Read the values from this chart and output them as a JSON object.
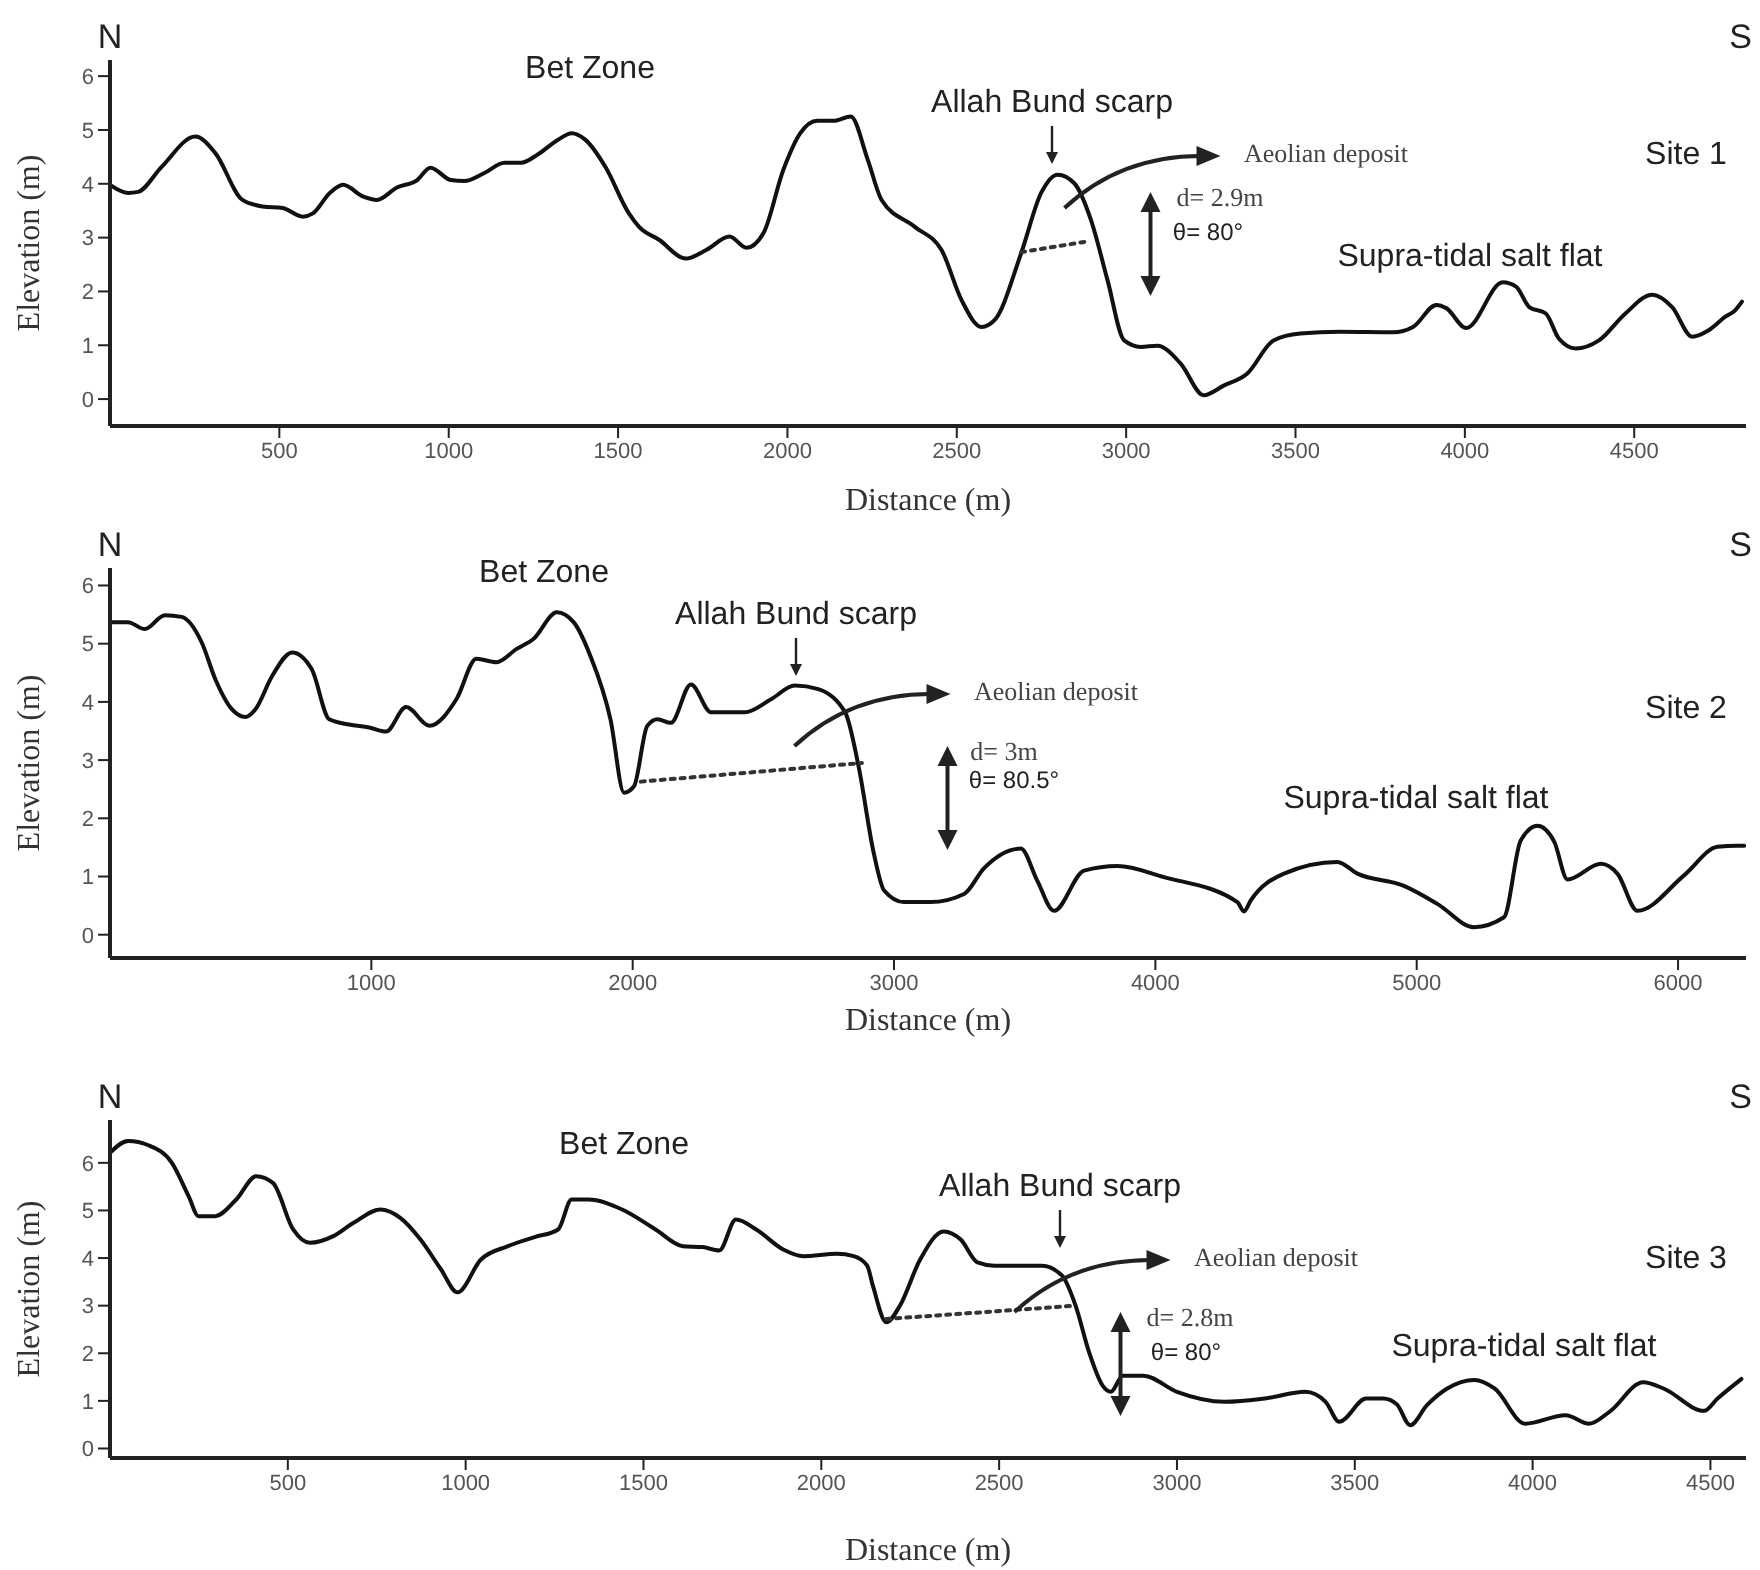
{
  "chart_data": [
    {
      "type": "line",
      "title": "Site 1",
      "xlabel": "Distance (m)",
      "ylabel": "Elevation (m)",
      "xlim": [
        0,
        4830
      ],
      "ylim": [
        -0.5,
        6.3
      ],
      "xticks": [
        500,
        1000,
        1500,
        2000,
        2500,
        3000,
        3500,
        4000,
        4500
      ],
      "yticks": [
        0,
        1,
        2,
        3,
        4,
        5,
        6
      ],
      "marker": "none",
      "series": [
        {
          "color": "#111111",
          "x": [
            0,
            54,
            83,
            153,
            252,
            311,
            391,
            450,
            510,
            569,
            599,
            649,
            688,
            748,
            788,
            847,
            907,
            946,
            1006,
            1046,
            1105,
            1165,
            1214,
            1264,
            1323,
            1363,
            1403,
            1462,
            1532,
            1562,
            1621,
            1700,
            1760,
            1829,
            1879,
            1929,
            1988,
            2038,
            2088,
            2137,
            2187,
            2237,
            2278,
            2376,
            2455,
            2514,
            2573,
            2612,
            2690,
            2749,
            2798,
            2847,
            2896,
            2945,
            2994,
            3043,
            3092,
            3161,
            3229,
            3288,
            3357,
            3435,
            3514,
            3631,
            3788,
            3847,
            3916,
            3945,
            4004,
            4112,
            4151,
            4190,
            4239,
            4278,
            4327,
            4396,
            4474,
            4553,
            4612,
            4671,
            4720,
            4769,
            4798,
            4818
          ],
          "values": [
            3.98,
            3.83,
            3.85,
            4.32,
            4.88,
            4.57,
            3.7,
            3.58,
            3.55,
            3.39,
            3.45,
            3.83,
            3.98,
            3.76,
            3.7,
            3.93,
            4.07,
            4.3,
            4.07,
            4.05,
            4.2,
            4.39,
            4.39,
            4.55,
            4.82,
            4.94,
            4.82,
            4.32,
            3.45,
            3.2,
            2.96,
            2.61,
            2.77,
            3.02,
            2.81,
            3.08,
            4.26,
            4.94,
            5.17,
            5.17,
            5.25,
            4.45,
            3.7,
            3.2,
            2.77,
            1.84,
            1.34,
            1.47,
            2.71,
            3.83,
            4.17,
            4.01,
            3.33,
            2.21,
            1.09,
            0.97,
            0.99,
            0.66,
            0.07,
            0.25,
            0.47,
            1.09,
            1.22,
            1.25,
            1.24,
            1.34,
            1.75,
            1.69,
            1.32,
            2.17,
            2.09,
            1.71,
            1.59,
            1.12,
            0.94,
            1.09,
            1.59,
            1.94,
            1.71,
            1.16,
            1.28,
            1.53,
            1.65,
            1.81
          ]
        },
        {
          "color": "#333333",
          "line_style": "dotted",
          "x": [
            2690,
            2886
          ],
          "values": [
            2.73,
            2.93
          ]
        }
      ],
      "annotations": [
        "N",
        "S",
        "Bet Zone",
        "Allah Bund scarp",
        "Aeolian deposit",
        "d= 2.9m",
        "θ= 80°",
        "Supra-tidal salt flat"
      ]
    },
    {
      "type": "line",
      "title": "Site 2",
      "xlabel": "Distance (m)",
      "ylabel": "Elevation (m)",
      "xlim": [
        0,
        6260
      ],
      "ylim": [
        -0.4,
        6.3
      ],
      "xticks": [
        1000,
        2000,
        3000,
        4000,
        5000,
        6000
      ],
      "yticks": [
        0,
        1,
        2,
        3,
        4,
        5,
        6
      ],
      "marker": "none",
      "series": [
        {
          "color": "#111111",
          "x": [
            0,
            69,
            133,
            210,
            274,
            351,
            403,
            467,
            518,
            556,
            621,
            697,
            772,
            839,
            915,
            992,
            1056,
            1133,
            1223,
            1326,
            1402,
            1479,
            1556,
            1620,
            1710,
            1774,
            1838,
            1915,
            1967,
            2005,
            2056,
            2095,
            2146,
            2223,
            2300,
            2428,
            2531,
            2620,
            2710,
            2813,
            2864,
            2923,
            2962,
            3038,
            3140,
            3268,
            3344,
            3485,
            3548,
            3612,
            3727,
            3855,
            4033,
            4314,
            4339,
            4365,
            4492,
            4696,
            4773,
            4951,
            5079,
            5219,
            5334,
            5398,
            5462,
            5526,
            5577,
            5705,
            5768,
            5845,
            6023,
            6151,
            6227,
            6253
          ],
          "values": [
            5.37,
            5.37,
            5.25,
            5.49,
            5.46,
            5.02,
            4.39,
            3.87,
            3.74,
            3.87,
            4.45,
            4.85,
            4.56,
            3.7,
            3.61,
            3.56,
            3.49,
            3.91,
            3.59,
            4.05,
            4.74,
            4.68,
            4.91,
            5.08,
            5.54,
            5.37,
            4.79,
            3.7,
            2.44,
            2.55,
            3.59,
            3.7,
            3.64,
            4.3,
            3.82,
            3.82,
            4.05,
            4.28,
            4.22,
            3.82,
            2.9,
            1.39,
            0.76,
            0.56,
            0.56,
            0.7,
            1.14,
            1.48,
            0.93,
            0.41,
            1.1,
            1.18,
            0.99,
            0.56,
            0.4,
            0.59,
            1.05,
            1.25,
            1.05,
            0.84,
            0.53,
            0.13,
            0.3,
            1.62,
            1.87,
            1.6,
            0.95,
            1.22,
            1.05,
            0.41,
            1.02,
            1.51,
            1.53,
            1.53
          ]
        },
        {
          "color": "#333333",
          "line_style": "dotted",
          "x": [
            2031,
            2877
          ],
          "values": [
            2.63,
            2.95
          ]
        }
      ],
      "annotations": [
        "N",
        "S",
        "Bet Zone",
        "Allah Bund scarp",
        "Aeolian deposit",
        "d= 3m",
        "θ= 80.5°",
        "Supra-tidal salt flat"
      ]
    },
    {
      "type": "line",
      "title": "Site 3",
      "xlabel": "Distance (m)",
      "ylabel": "Elevation (m)",
      "xlim": [
        0,
        4600
      ],
      "ylim": [
        -0.2,
        6.9
      ],
      "xticks": [
        500,
        1000,
        1500,
        2000,
        2500,
        3000,
        3500,
        4000,
        4500
      ],
      "yticks": [
        0,
        1,
        2,
        3,
        4,
        5,
        6
      ],
      "marker": "none",
      "series": [
        {
          "color": "#111111",
          "x": [
            0,
            51,
            108,
            174,
            221,
            249,
            296,
            355,
            411,
            458,
            515,
            562,
            628,
            685,
            760,
            817,
            873,
            930,
            977,
            1043,
            1119,
            1194,
            1260,
            1298,
            1345,
            1440,
            1534,
            1610,
            1666,
            1713,
            1760,
            1817,
            1893,
            1949,
            2044,
            2091,
            2129,
            2145,
            2183,
            2221,
            2278,
            2344,
            2392,
            2439,
            2487,
            2563,
            2620,
            2677,
            2715,
            2753,
            2791,
            2814,
            2848,
            2905,
            3000,
            3133,
            3247,
            3361,
            3418,
            3456,
            3532,
            3580,
            3618,
            3656,
            3703,
            3760,
            3836,
            3893,
            3979,
            4093,
            4159,
            4216,
            4311,
            4368,
            4482,
            4520,
            4587
          ],
          "values": [
            6.21,
            6.46,
            6.37,
            6.0,
            5.3,
            4.88,
            4.88,
            5.23,
            5.72,
            5.58,
            4.6,
            4.32,
            4.46,
            4.74,
            5.02,
            4.84,
            4.39,
            3.77,
            3.28,
            3.97,
            4.25,
            4.44,
            4.6,
            5.23,
            5.23,
            5.02,
            4.6,
            4.25,
            4.23,
            4.16,
            4.81,
            4.6,
            4.18,
            4.04,
            4.09,
            4.04,
            3.84,
            3.42,
            2.65,
            3.0,
            3.97,
            4.56,
            4.39,
            3.91,
            3.84,
            3.84,
            3.84,
            3.63,
            3.0,
            2.02,
            1.32,
            1.19,
            1.53,
            1.53,
            1.19,
            0.98,
            1.05,
            1.19,
            0.98,
            0.56,
            1.05,
            1.05,
            0.93,
            0.49,
            0.91,
            1.26,
            1.44,
            1.26,
            0.52,
            0.7,
            0.52,
            0.77,
            1.39,
            1.26,
            0.79,
            1.05,
            1.46
          ]
        },
        {
          "color": "#333333",
          "line_style": "dotted",
          "x": [
            2183,
            2715
          ],
          "values": [
            2.72,
            3.0
          ]
        }
      ],
      "annotations": [
        "N",
        "S",
        "Bet Zone",
        "Allah Bund scarp",
        "Aeolian deposit",
        "d= 2.8m",
        "θ= 80°",
        "Supra-tidal salt flat"
      ]
    }
  ]
}
